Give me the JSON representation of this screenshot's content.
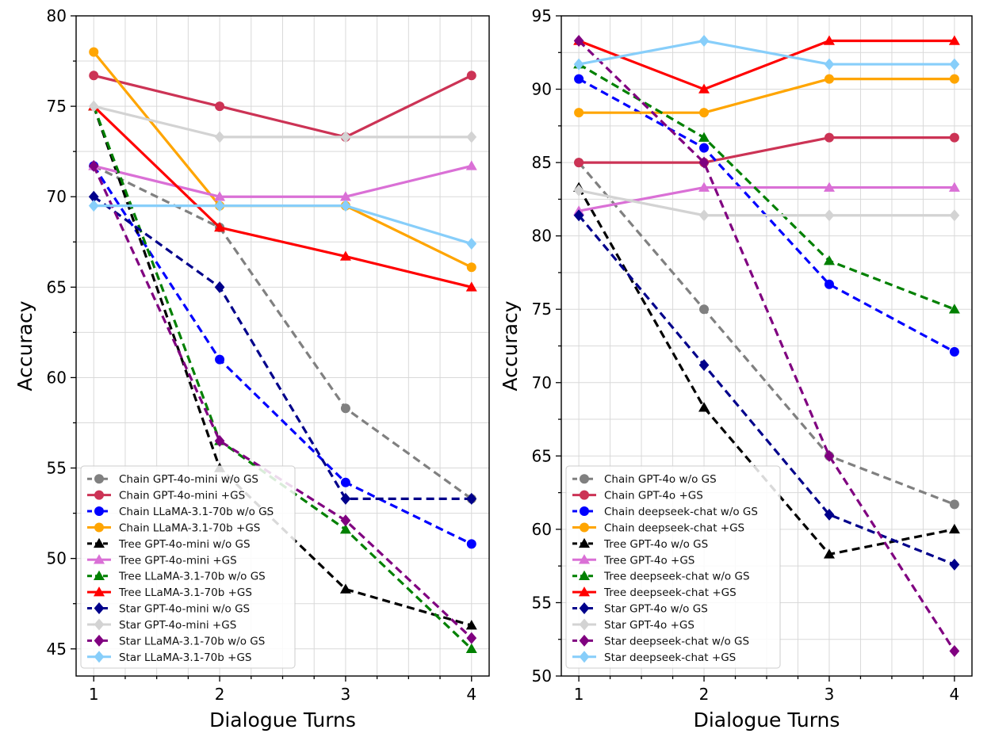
{
  "chart_data": [
    {
      "type": "line",
      "title": "",
      "xlabel": "Dialogue Turns",
      "ylabel": "Accuracy",
      "x": [
        1,
        2,
        3,
        4
      ],
      "xticks": [
        "1",
        "2",
        "3",
        "4"
      ],
      "ylim": [
        43.5,
        80
      ],
      "yticks": [
        45,
        50,
        55,
        60,
        65,
        70,
        75,
        80
      ],
      "grid": true,
      "legend_position": "bottom-left",
      "series": [
        {
          "name": "Chain GPT-4o-mini w/o GS",
          "color": "#808080",
          "dash": "dashed",
          "marker": "circle",
          "values": [
            71.7,
            68.3,
            58.3,
            53.3
          ]
        },
        {
          "name": "Chain GPT-4o-mini +GS",
          "color": "#cc3355",
          "dash": "solid",
          "marker": "circle",
          "values": [
            76.7,
            75.0,
            73.3,
            76.7
          ]
        },
        {
          "name": "Chain LLaMA-3.1-70b w/o GS",
          "color": "#0000ff",
          "dash": "dashed",
          "marker": "circle",
          "values": [
            71.7,
            61.0,
            54.2,
            50.8
          ]
        },
        {
          "name": "Chain LLaMA-3.1-70b +GS",
          "color": "#ffa500",
          "dash": "solid",
          "marker": "circle",
          "values": [
            78.0,
            69.5,
            69.5,
            66.1
          ]
        },
        {
          "name": "Tree GPT-4o-mini w/o GS",
          "color": "#000000",
          "dash": "dashed",
          "marker": "triangle",
          "values": [
            75.0,
            55.0,
            48.3,
            46.3
          ]
        },
        {
          "name": "Tree GPT-4o-mini +GS",
          "color": "#da70d6",
          "dash": "solid",
          "marker": "triangle",
          "values": [
            71.7,
            70.0,
            70.0,
            71.7
          ]
        },
        {
          "name": "Tree LLaMA-3.1-70b w/o GS",
          "color": "#008000",
          "dash": "dashed",
          "marker": "triangle",
          "values": [
            75.0,
            56.5,
            51.6,
            45.0
          ]
        },
        {
          "name": "Tree LLaMA-3.1-70b +GS",
          "color": "#ff0000",
          "dash": "solid",
          "marker": "triangle",
          "values": [
            75.0,
            68.3,
            66.7,
            65.0
          ]
        },
        {
          "name": "Star GPT-4o-mini w/o GS",
          "color": "#00008b",
          "dash": "dashed",
          "marker": "diamond",
          "values": [
            70.0,
            65.0,
            53.3,
            53.3
          ]
        },
        {
          "name": "Star GPT-4o-mini +GS",
          "color": "#d3d3d3",
          "dash": "solid",
          "marker": "diamond",
          "values": [
            75.0,
            73.3,
            73.3,
            73.3
          ]
        },
        {
          "name": "Star LLaMA-3.1-70b w/o GS",
          "color": "#800080",
          "dash": "dashed",
          "marker": "diamond",
          "values": [
            71.7,
            56.5,
            52.1,
            45.6
          ]
        },
        {
          "name": "Star LLaMA-3.1-70b +GS",
          "color": "#87cefa",
          "dash": "solid",
          "marker": "diamond",
          "values": [
            69.5,
            69.5,
            69.5,
            67.4
          ]
        }
      ]
    },
    {
      "type": "line",
      "title": "",
      "xlabel": "Dialogue Turns",
      "ylabel": "Accuracy",
      "x": [
        1,
        2,
        3,
        4
      ],
      "xticks": [
        "1",
        "2",
        "3",
        "4"
      ],
      "ylim": [
        50,
        95
      ],
      "yticks": [
        50,
        55,
        60,
        65,
        70,
        75,
        80,
        85,
        90,
        95
      ],
      "grid": true,
      "legend_position": "bottom-left",
      "series": [
        {
          "name": "Chain GPT-4o w/o GS",
          "color": "#808080",
          "dash": "dashed",
          "marker": "circle",
          "values": [
            85.0,
            75.0,
            65.0,
            61.7
          ]
        },
        {
          "name": "Chain GPT-4o +GS",
          "color": "#cc3355",
          "dash": "solid",
          "marker": "circle",
          "values": [
            85.0,
            85.0,
            86.7,
            86.7
          ]
        },
        {
          "name": "Chain deepseek-chat w/o GS",
          "color": "#0000ff",
          "dash": "dashed",
          "marker": "circle",
          "values": [
            90.7,
            86.0,
            76.7,
            72.1
          ]
        },
        {
          "name": "Chain deepseek-chat +GS",
          "color": "#ffa500",
          "dash": "solid",
          "marker": "circle",
          "values": [
            88.4,
            88.4,
            90.7,
            90.7
          ]
        },
        {
          "name": "Tree GPT-4o w/o GS",
          "color": "#000000",
          "dash": "dashed",
          "marker": "triangle",
          "values": [
            83.3,
            68.3,
            58.3,
            60.0
          ]
        },
        {
          "name": "Tree GPT-4o +GS",
          "color": "#da70d6",
          "dash": "solid",
          "marker": "triangle",
          "values": [
            81.7,
            83.3,
            83.3,
            83.3
          ]
        },
        {
          "name": "Tree deepseek-chat w/o GS",
          "color": "#008000",
          "dash": "dashed",
          "marker": "triangle",
          "values": [
            91.7,
            86.7,
            78.3,
            75.0
          ]
        },
        {
          "name": "Tree deepseek-chat +GS",
          "color": "#ff0000",
          "dash": "solid",
          "marker": "triangle",
          "values": [
            93.3,
            90.0,
            93.3,
            93.3
          ]
        },
        {
          "name": "Star GPT-4o w/o GS",
          "color": "#00008b",
          "dash": "dashed",
          "marker": "diamond",
          "values": [
            81.4,
            71.2,
            61.0,
            57.6
          ]
        },
        {
          "name": "Star GPT-4o +GS",
          "color": "#d3d3d3",
          "dash": "solid",
          "marker": "diamond",
          "values": [
            83.1,
            81.4,
            81.4,
            81.4
          ]
        },
        {
          "name": "Star deepseek-chat w/o GS",
          "color": "#800080",
          "dash": "dashed",
          "marker": "diamond",
          "values": [
            93.3,
            85.0,
            65.0,
            51.7
          ]
        },
        {
          "name": "Star deepseek-chat +GS",
          "color": "#87cefa",
          "dash": "solid",
          "marker": "diamond",
          "values": [
            91.7,
            93.3,
            91.7,
            91.7
          ]
        }
      ]
    }
  ]
}
